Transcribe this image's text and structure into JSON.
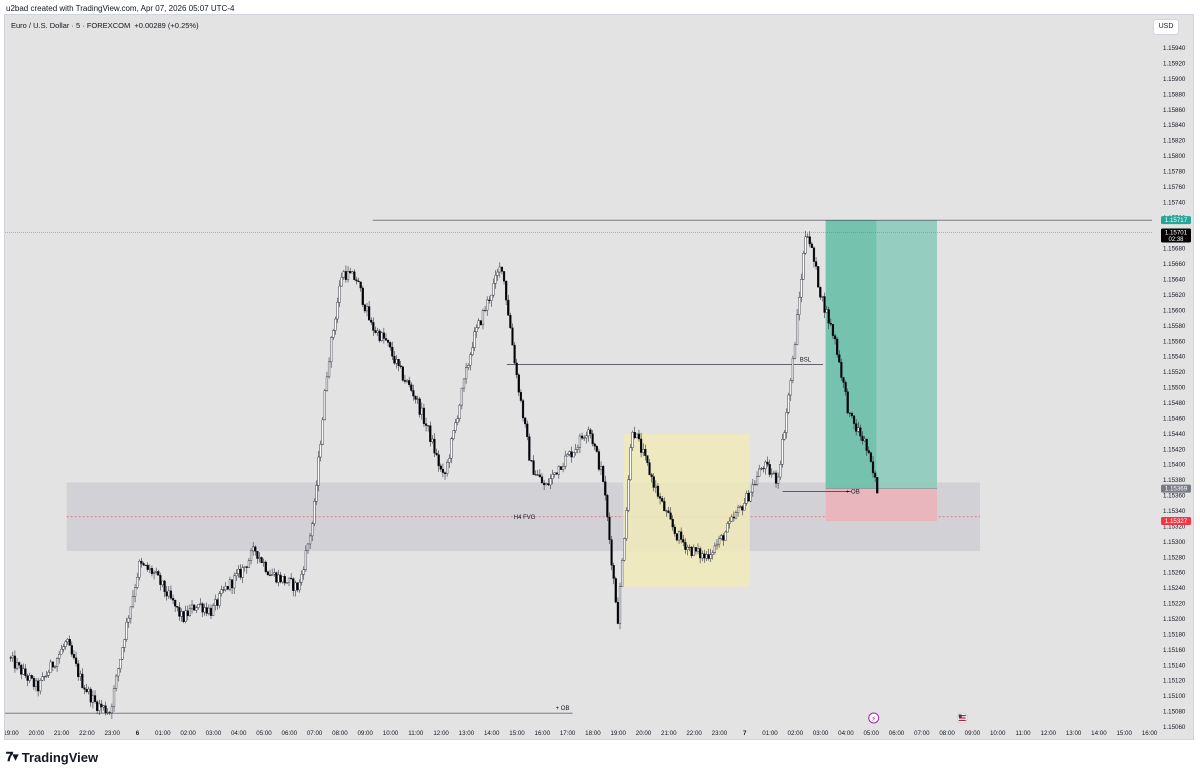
{
  "header": {
    "created_by": "u2bad created with TradingView.com, Apr 07, 2026 05:07 UTC-4"
  },
  "symbol": {
    "name": "Euro / U.S. Dollar · 5 · FOREXCOM",
    "change": "+0.00289 (+0.25%)"
  },
  "currency_button": "USD",
  "footer": {
    "brand": "TradingView"
  },
  "colors": {
    "background": "#e3e3e3",
    "fvg_zone": "#d2d2d6",
    "yellow_box": "#f0eab8",
    "long_target": "#8ccbbb",
    "long_target_strong": "#6dbfa9",
    "stop_zone": "#eab4bc",
    "up_candle": "#ffffff",
    "down_candle": "#000000",
    "price_label_green": "#26a69a",
    "price_label_black": "#000000",
    "price_label_gray": "#787b86",
    "price_label_red": "#f23645",
    "event_purple": "#9c27b0"
  },
  "chart_data": {
    "type": "candlestick",
    "y_axis": {
      "min": 1.1505,
      "max": 1.1595,
      "ticks": [
        "1.15940",
        "1.15920",
        "1.15900",
        "1.15880",
        "1.15860",
        "1.15840",
        "1.15820",
        "1.15800",
        "1.15780",
        "1.15760",
        "1.15740",
        "1.15720",
        "1.15700",
        "1.15680",
        "1.15660",
        "1.15640",
        "1.15620",
        "1.15600",
        "1.15580",
        "1.15560",
        "1.15540",
        "1.15520",
        "1.15500",
        "1.15480",
        "1.15460",
        "1.15440",
        "1.15420",
        "1.15400",
        "1.15380",
        "1.15360",
        "1.15340",
        "1.15320",
        "1.15300",
        "1.15280",
        "1.15260",
        "1.15240",
        "1.15220",
        "1.15200",
        "1.15180",
        "1.15160",
        "1.15140",
        "1.15120",
        "1.15100",
        "1.15080",
        "1.15060"
      ]
    },
    "x_axis": {
      "ticks": [
        "19:00",
        "20:00",
        "21:00",
        "22:00",
        "23:00",
        "6",
        "01:00",
        "02:00",
        "03:00",
        "04:00",
        "05:00",
        "06:00",
        "07:00",
        "08:00",
        "09:00",
        "10:00",
        "11:00",
        "12:00",
        "13:00",
        "14:00",
        "15:00",
        "16:00",
        "17:00",
        "18:00",
        "19:00",
        "20:00",
        "21:00",
        "22:00",
        "23:00",
        "7",
        "01:00",
        "02:00",
        "03:00",
        "04:00",
        "05:00",
        "06:00",
        "07:00",
        "08:00",
        "09:00",
        "10:00",
        "11:00",
        "12:00",
        "13:00",
        "14:00",
        "15:00",
        "16:00"
      ]
    },
    "path_knots": [
      [
        0,
        1.1515
      ],
      [
        1,
        1.1513
      ],
      [
        2,
        1.1511
      ],
      [
        3,
        1.1514
      ],
      [
        4,
        1.1517
      ],
      [
        5,
        1.1512
      ],
      [
        6,
        1.1509
      ],
      [
        7,
        1.1508
      ],
      [
        8,
        1.1518
      ],
      [
        9,
        1.1527
      ],
      [
        10,
        1.1526
      ],
      [
        11,
        1.1523
      ],
      [
        12,
        1.152
      ],
      [
        13,
        1.1522
      ],
      [
        14,
        1.1521
      ],
      [
        15,
        1.1524
      ],
      [
        16,
        1.1526
      ],
      [
        17,
        1.1529
      ],
      [
        18,
        1.1526
      ],
      [
        19,
        1.1525
      ],
      [
        20,
        1.1524
      ],
      [
        21,
        1.1533
      ],
      [
        22,
        1.1553
      ],
      [
        23,
        1.1565
      ],
      [
        24,
        1.1564
      ],
      [
        25,
        1.1558
      ],
      [
        26,
        1.1556
      ],
      [
        27,
        1.1552
      ],
      [
        28,
        1.1549
      ],
      [
        29,
        1.1544
      ],
      [
        30,
        1.1538
      ],
      [
        31,
        1.1547
      ],
      [
        32,
        1.1556
      ],
      [
        33,
        1.1561
      ],
      [
        34,
        1.1566
      ],
      [
        35,
        1.1552
      ],
      [
        36,
        1.154
      ],
      [
        37,
        1.1537
      ],
      [
        38,
        1.154
      ],
      [
        39,
        1.1542
      ],
      [
        40,
        1.1545
      ],
      [
        41,
        1.1538
      ],
      [
        42,
        1.152
      ],
      [
        43,
        1.1545
      ],
      [
        44,
        1.154
      ],
      [
        45,
        1.1535
      ],
      [
        46,
        1.1531
      ],
      [
        47,
        1.1529
      ],
      [
        48,
        1.1528
      ],
      [
        49,
        1.153
      ],
      [
        50,
        1.1533
      ],
      [
        51,
        1.1536
      ],
      [
        52,
        1.154
      ],
      [
        53,
        1.1538
      ],
      [
        54,
        1.1552
      ],
      [
        55,
        1.1571
      ],
      [
        56,
        1.1562
      ],
      [
        57,
        1.1556
      ],
      [
        58,
        1.1546
      ],
      [
        59,
        1.1543
      ],
      [
        60,
        1.1536
      ]
    ],
    "annotations": [
      {
        "label": "H4 FVG",
        "type": "zone",
        "from": 1.15288,
        "to": 1.15377
      },
      {
        "label": "BSL",
        "type": "line",
        "price": 1.1553
      },
      {
        "label": "+ OB",
        "type": "line",
        "price": 1.15365
      },
      {
        "label": "+ OB",
        "type": "line",
        "price": 1.15078
      }
    ],
    "position": {
      "type": "long",
      "entry": 1.15369,
      "target": 1.15717,
      "stop": 1.15327
    },
    "price_labels": [
      {
        "price": 1.15717,
        "text": "1.15717",
        "style": "green"
      },
      {
        "price": 1.15701,
        "text": "1.15701",
        "sub": "02:38",
        "style": "black"
      },
      {
        "price": 1.15369,
        "text": "1.15369",
        "style": "gray"
      },
      {
        "price": 1.15327,
        "text": "1.15327",
        "style": "red"
      }
    ],
    "last_price": 1.15701
  }
}
